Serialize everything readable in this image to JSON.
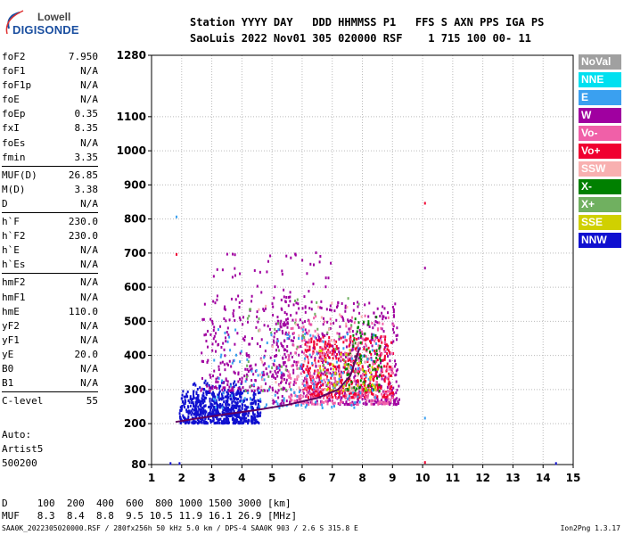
{
  "logo": {
    "brand": "Lowell",
    "product": "DIGISONDE"
  },
  "header": {
    "line1": "Station YYYY DAY   DDD HHMMSS P1   FFS S AXN PPS IGA PS",
    "line2": "SaoLuis 2022 Nov01 305 020000 RSF    1 715 100 00- 11"
  },
  "params": [
    {
      "k": "foF2",
      "v": "7.950"
    },
    {
      "k": "foF1",
      "v": "N/A"
    },
    {
      "k": "foF1p",
      "v": "N/A"
    },
    {
      "k": "foE",
      "v": "N/A"
    },
    {
      "k": "foEp",
      "v": "0.35"
    },
    {
      "k": "fxI",
      "v": "8.35"
    },
    {
      "k": "foEs",
      "v": "N/A"
    },
    {
      "k": "fmin",
      "v": "3.35"
    },
    {
      "k": "MUF(D)",
      "v": "26.85",
      "sep": true
    },
    {
      "k": "M(D)",
      "v": "3.38"
    },
    {
      "k": "D",
      "v": "N/A"
    },
    {
      "k": "h`F",
      "v": "230.0",
      "sep": true
    },
    {
      "k": "h`F2",
      "v": "230.0"
    },
    {
      "k": "h`E",
      "v": "N/A"
    },
    {
      "k": "h`Es",
      "v": "N/A"
    },
    {
      "k": "hmF2",
      "v": "N/A",
      "sep": true
    },
    {
      "k": "hmF1",
      "v": "N/A"
    },
    {
      "k": "hmE",
      "v": "110.0"
    },
    {
      "k": "yF2",
      "v": "N/A"
    },
    {
      "k": "yF1",
      "v": "N/A"
    },
    {
      "k": "yE",
      "v": "20.0"
    },
    {
      "k": "B0",
      "v": "N/A"
    },
    {
      "k": "B1",
      "v": "N/A"
    },
    {
      "k": "C-level",
      "v": "55",
      "sep": true
    }
  ],
  "auto": {
    "line1": "Auto:",
    "line2": "Artist5",
    "line3": "500200"
  },
  "legend": [
    {
      "label": "NoVal",
      "color": "#a0a0a0"
    },
    {
      "label": "NNE",
      "color": "#00e0f0"
    },
    {
      "label": "E",
      "color": "#3aa0f0"
    },
    {
      "label": "W",
      "color": "#a000a0"
    },
    {
      "label": "Vo-",
      "color": "#f060a8"
    },
    {
      "label": "Vo+",
      "color": "#f00030"
    },
    {
      "label": "SSW",
      "color": "#f8b0b0"
    },
    {
      "label": "X-",
      "color": "#008000"
    },
    {
      "label": "X+",
      "color": "#70b060"
    },
    {
      "label": "SSE",
      "color": "#d0d000"
    },
    {
      "label": "NNW",
      "color": "#1010d0"
    }
  ],
  "muf_table": {
    "d_line": "D     100  200  400  600  800 1000 1500 3000 [km]",
    "muf_line": "MUF   8.3  8.4  8.8  9.5 10.5 11.9 16.1 26.9 [MHz]"
  },
  "footer": {
    "left": "SAA0K_2022305020000.RSF / 280fx256h 50 kHz 5.0 km / DPS-4 SAA0K 903 / 2.6 S 315.8 E",
    "right": "Ion2Png 1.3.17"
  },
  "chart_data": {
    "type": "scatter",
    "xlabel": "",
    "ylabel": "",
    "xlim": [
      1,
      15
    ],
    "ylim": [
      80,
      1280
    ],
    "xticks": [
      1,
      2,
      3,
      4,
      5,
      6,
      7,
      8,
      9,
      10,
      11,
      12,
      13,
      14,
      15
    ],
    "yticks": [
      80,
      200,
      300,
      400,
      500,
      600,
      700,
      800,
      900,
      1000,
      1100,
      1280
    ],
    "grid": true,
    "trace_curve": {
      "name": "",
      "x": [
        1.8,
        2.5,
        3.5,
        4.5,
        5.5,
        6.5,
        7.2,
        7.6,
        7.9
      ],
      "y": [
        205,
        215,
        228,
        240,
        255,
        275,
        300,
        340,
        420
      ]
    },
    "clusters": [
      {
        "color": "#1010d0",
        "xr": [
          1.9,
          4.6
        ],
        "yr": [
          205,
          300
        ],
        "n": 520
      },
      {
        "color": "#1010d0",
        "xr": [
          2.3,
          4.0
        ],
        "yr": [
          230,
          330
        ],
        "n": 200
      },
      {
        "color": "#a000a0",
        "xr": [
          2.6,
          5.5
        ],
        "yr": [
          300,
          560
        ],
        "n": 240
      },
      {
        "color": "#a000a0",
        "xr": [
          5.0,
          9.2
        ],
        "yr": [
          260,
          560
        ],
        "n": 520
      },
      {
        "color": "#f00030",
        "xr": [
          6.0,
          9.0
        ],
        "yr": [
          280,
          460
        ],
        "n": 420
      },
      {
        "color": "#f060a8",
        "xr": [
          5.5,
          9.0
        ],
        "yr": [
          260,
          520
        ],
        "n": 320
      },
      {
        "color": "#008000",
        "xr": [
          7.4,
          8.6
        ],
        "yr": [
          300,
          520
        ],
        "n": 80
      },
      {
        "color": "#70b060",
        "xr": [
          4.0,
          8.0
        ],
        "yr": [
          300,
          600
        ],
        "n": 60
      },
      {
        "color": "#3aa0f0",
        "xr": [
          3.0,
          8.5
        ],
        "yr": [
          250,
          480
        ],
        "n": 140
      },
      {
        "color": "#d0d000",
        "xr": [
          6.5,
          8.5
        ],
        "yr": [
          300,
          420
        ],
        "n": 50
      },
      {
        "color": "#f8b0b0",
        "xr": [
          4.5,
          8.5
        ],
        "yr": [
          300,
          560
        ],
        "n": 40
      },
      {
        "color": "#a000a0",
        "xr": [
          3.0,
          7.0
        ],
        "yr": [
          560,
          720
        ],
        "n": 60
      }
    ],
    "isolated_points": [
      {
        "x": 1.8,
        "y": 700,
        "color": "#f00030"
      },
      {
        "x": 1.8,
        "y": 810,
        "color": "#3aa0f0"
      },
      {
        "x": 1.9,
        "y": 87,
        "color": "#1010d0"
      },
      {
        "x": 1.6,
        "y": 87,
        "color": "#1010d0"
      },
      {
        "x": 10.05,
        "y": 850,
        "color": "#f00030"
      },
      {
        "x": 10.05,
        "y": 660,
        "color": "#a000a0"
      },
      {
        "x": 10.05,
        "y": 220,
        "color": "#3aa0f0"
      },
      {
        "x": 10.05,
        "y": 90,
        "color": "#f00030"
      },
      {
        "x": 14.4,
        "y": 87,
        "color": "#1010d0"
      }
    ]
  }
}
